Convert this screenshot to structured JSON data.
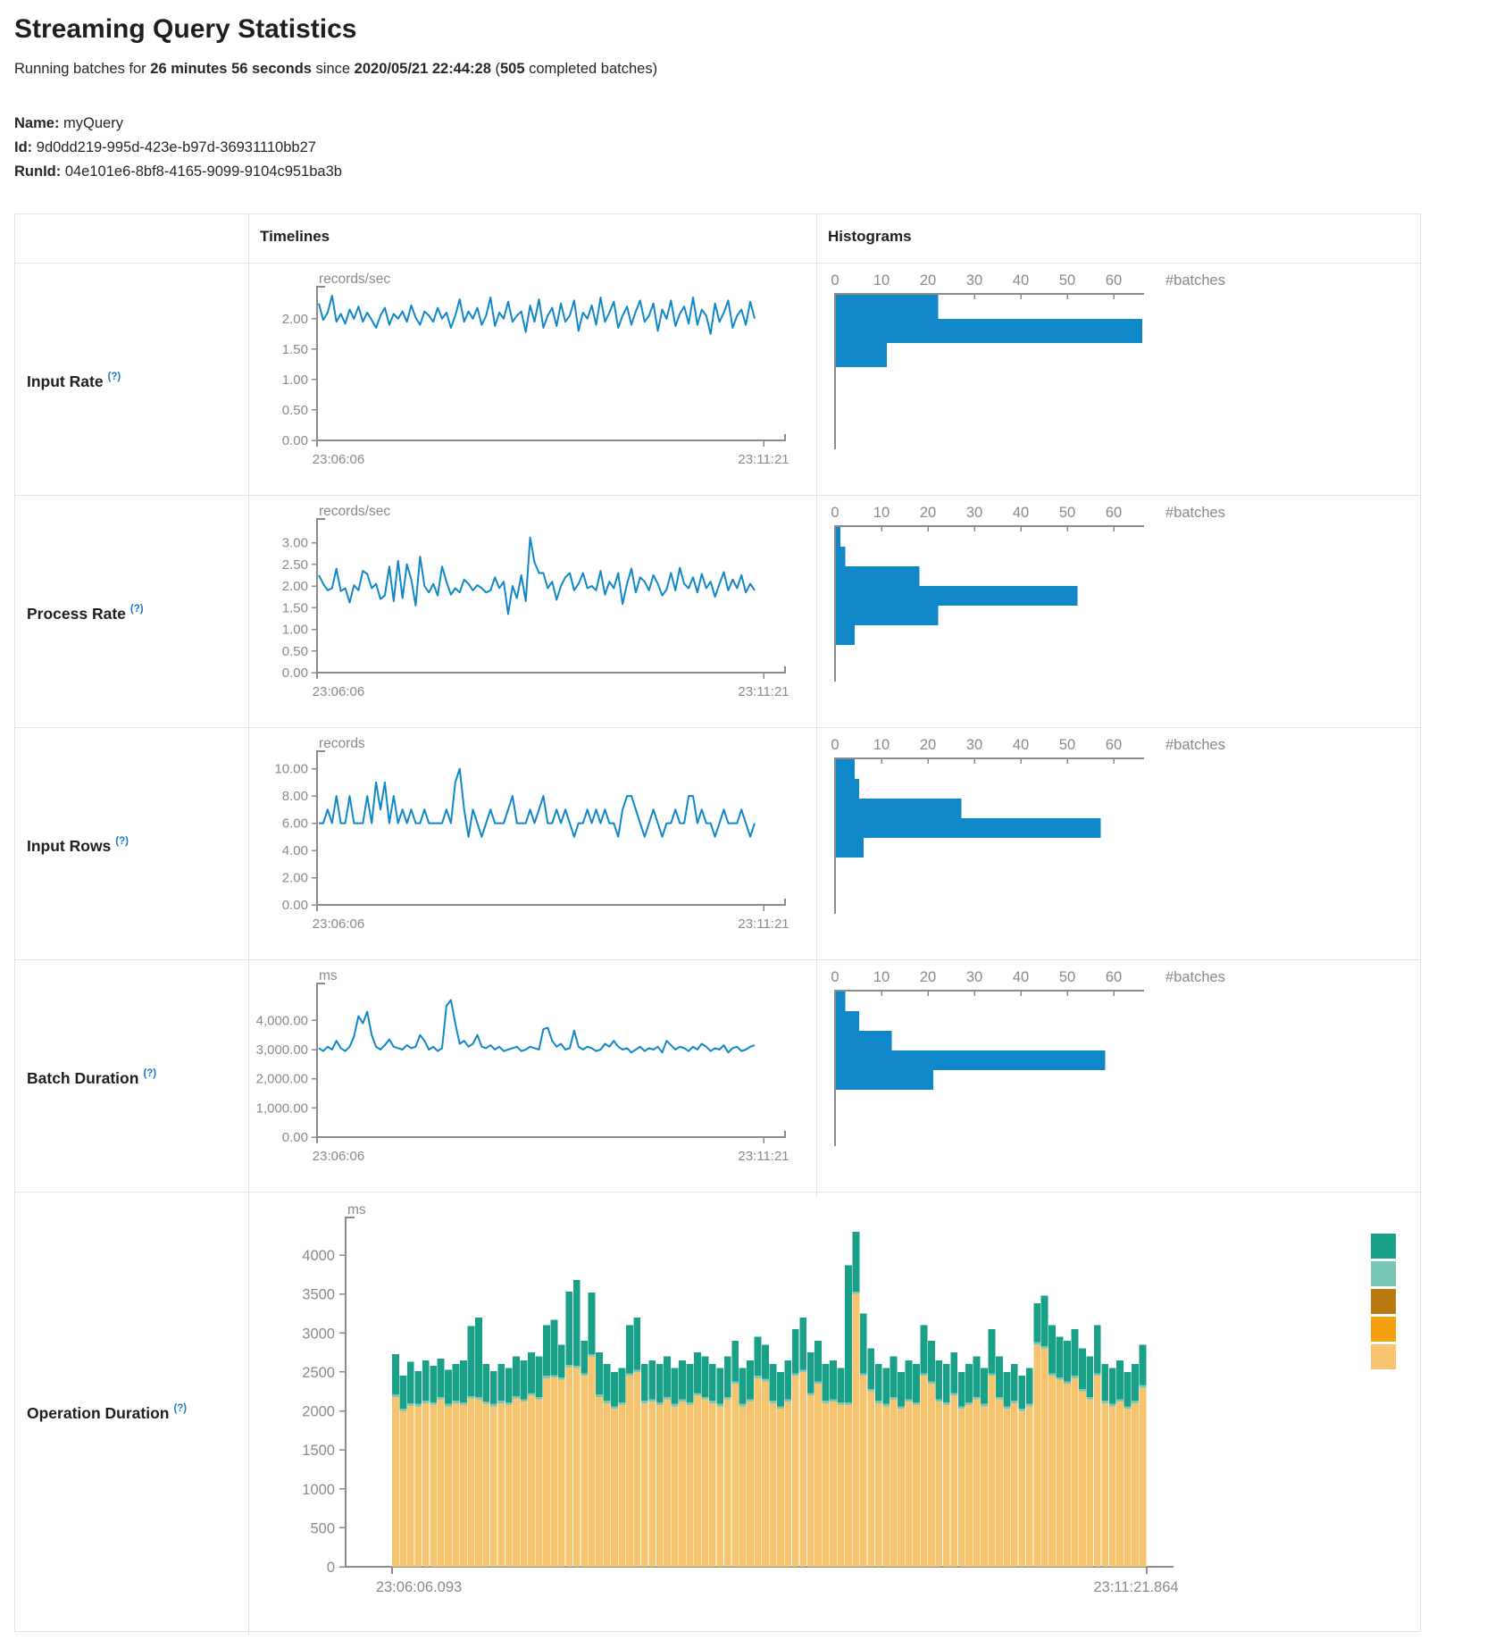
{
  "header": {
    "title": "Streaming Query Statistics",
    "running_prefix": "Running batches for",
    "running_duration": "26 minutes 56 seconds",
    "running_middle": "since",
    "running_start_time": "2020/05/21 22:44:28",
    "running_paren": "(",
    "completed_batches": "505",
    "running_suffix": " completed batches)",
    "name_label": "Name:",
    "name_value": "myQuery",
    "id_label": "Id:",
    "id_value": "9d0dd219-995d-423e-b97d-36931110bb27",
    "runid_label": "RunId:",
    "runid_value": "04e101e6-8bf8-4165-9099-9104c951ba3b"
  },
  "table": {
    "col_timelines": "Timelines",
    "col_histograms": "Histograms",
    "help_marker": "(?)",
    "rows": [
      {
        "label": "Input Rate"
      },
      {
        "label": "Process Rate"
      },
      {
        "label": "Input Rows"
      },
      {
        "label": "Batch Duration"
      },
      {
        "label": "Operation Duration"
      }
    ]
  },
  "colors": {
    "line_blue": "#0f87c9",
    "bar_blue": "#0f87c9",
    "axis_gray": "#8b8b8b",
    "text_gray": "#8a8a8a"
  },
  "chart_data": [
    {
      "id": "input-rate-timeline",
      "type": "line",
      "title": "Input Rate timeline",
      "unit": "records/sec",
      "color": "#0f87c9",
      "yticks": [
        0,
        0.5,
        1,
        1.5,
        2
      ],
      "tick_format": "2dp",
      "ymax": 2.35,
      "x_start_label": "23:06:06",
      "x_end_label": "23:11:21",
      "values": [
        2.25,
        1.98,
        2.1,
        2.38,
        1.95,
        2.08,
        1.92,
        2.15,
        2.0,
        2.2,
        1.95,
        2.1,
        1.98,
        1.85,
        2.05,
        2.18,
        1.9,
        2.08,
        2.0,
        2.12,
        1.95,
        2.22,
        2.02,
        1.9,
        2.12,
        2.05,
        1.95,
        2.18,
        2.0,
        2.1,
        1.85,
        2.05,
        2.32,
        1.95,
        2.12,
        2.0,
        2.18,
        1.9,
        2.05,
        2.35,
        1.88,
        2.1,
        2.0,
        2.28,
        1.95,
        2.05,
        2.12,
        1.78,
        2.22,
        1.95,
        2.32,
        1.85,
        2.05,
        2.18,
        1.88,
        2.25,
        1.95,
        2.05,
        2.3,
        1.8,
        2.1,
        2.0,
        2.22,
        1.9,
        2.35,
        1.95,
        2.1,
        2.28,
        1.85,
        2.05,
        2.2,
        1.9,
        2.12,
        2.3,
        1.95,
        2.05,
        2.25,
        1.8,
        2.15,
        2.0,
        2.3,
        1.88,
        2.08,
        2.2,
        1.92,
        2.35,
        1.9,
        2.15,
        2.05,
        1.75,
        2.25,
        1.95,
        2.1,
        2.3,
        1.85,
        2.05,
        2.15,
        1.9,
        2.28,
        2.0
      ]
    },
    {
      "id": "input-rate-histogram",
      "type": "histogram",
      "title": "Input Rate histogram",
      "color": "#0f87c9",
      "xticks": [
        0,
        10,
        20,
        30,
        40,
        50,
        60
      ],
      "unit_label": "#batches",
      "bin_counts": [
        22,
        66,
        11
      ]
    },
    {
      "id": "process-rate-timeline",
      "type": "line",
      "title": "Process Rate timeline",
      "unit": "records/sec",
      "color": "#0f87c9",
      "yticks": [
        0,
        0.5,
        1,
        1.5,
        2,
        2.5,
        3
      ],
      "tick_format": "2dp",
      "ymax": 3.3,
      "x_start_label": "23:06:06",
      "x_end_label": "23:11:21",
      "values": [
        2.25,
        2.05,
        1.9,
        1.95,
        2.4,
        1.88,
        1.95,
        1.62,
        2.02,
        1.9,
        2.35,
        2.28,
        1.95,
        2.05,
        1.7,
        1.78,
        2.45,
        1.65,
        2.58,
        1.72,
        2.5,
        2.15,
        1.55,
        2.68,
        2.0,
        1.85,
        2.05,
        1.78,
        2.45,
        2.1,
        1.8,
        1.95,
        1.85,
        2.15,
        2.05,
        1.9,
        2.02,
        1.95,
        1.85,
        1.9,
        2.2,
        1.95,
        2.1,
        1.35,
        2.0,
        1.72,
        2.25,
        1.65,
        3.12,
        2.55,
        2.3,
        2.3,
        1.95,
        2.1,
        1.68,
        2.0,
        2.2,
        2.3,
        1.9,
        2.05,
        2.3,
        1.95,
        2.0,
        1.9,
        2.35,
        1.8,
        2.1,
        1.95,
        2.3,
        1.58,
        2.05,
        2.4,
        1.85,
        2.2,
        2.1,
        1.9,
        2.25,
        2.05,
        1.78,
        1.92,
        2.3,
        1.9,
        2.42,
        2.05,
        1.95,
        2.2,
        1.85,
        2.28,
        1.95,
        2.1,
        1.75,
        2.05,
        2.32,
        1.9,
        2.15,
        1.95,
        2.25,
        1.85,
        2.05,
        1.9
      ]
    },
    {
      "id": "process-rate-histogram",
      "type": "histogram",
      "title": "Process Rate histogram",
      "color": "#0f87c9",
      "xticks": [
        0,
        10,
        20,
        30,
        40,
        50,
        60
      ],
      "unit_label": "#batches",
      "bin_counts": [
        1,
        2,
        18,
        52,
        22,
        4
      ]
    },
    {
      "id": "input-rows-timeline",
      "type": "line",
      "title": "Input Rows timeline",
      "unit": "records",
      "color": "#0f87c9",
      "yticks": [
        0,
        2,
        4,
        6,
        8,
        10
      ],
      "tick_format": "2dp",
      "ymax": 10.5,
      "x_start_label": "23:06:06",
      "x_end_label": "23:11:21",
      "values": [
        6,
        6,
        7,
        6,
        8,
        6,
        6,
        8,
        6,
        6,
        6,
        8,
        6,
        9,
        7,
        9,
        6,
        8,
        6,
        7,
        6,
        7,
        6,
        6,
        7,
        6,
        6,
        6,
        6,
        7,
        6,
        9,
        10,
        7,
        5,
        7,
        6,
        5,
        6,
        7,
        6,
        6,
        6,
        7,
        8,
        6,
        6,
        6,
        7,
        6,
        7,
        8,
        6,
        6,
        7,
        6,
        7,
        6,
        5,
        6,
        6,
        7,
        6,
        7,
        6,
        7,
        6,
        6,
        5,
        7,
        8,
        8,
        7,
        6,
        5,
        6,
        7,
        6,
        5,
        6,
        6,
        7,
        6,
        6,
        8,
        8,
        6,
        7,
        6,
        6,
        5,
        6,
        7,
        6,
        6,
        6,
        7,
        6,
        5,
        6
      ]
    },
    {
      "id": "input-rows-histogram",
      "type": "histogram",
      "title": "Input Rows histogram",
      "color": "#0f87c9",
      "xticks": [
        0,
        10,
        20,
        30,
        40,
        50,
        60
      ],
      "unit_label": "#batches",
      "bin_counts": [
        4,
        5,
        27,
        57,
        6
      ]
    },
    {
      "id": "batch-duration-timeline",
      "type": "line",
      "title": "Batch Duration timeline",
      "unit": "ms",
      "color": "#0f87c9",
      "yticks": [
        0,
        1000,
        2000,
        3000,
        4000
      ],
      "tick_format": "2dp",
      "ymax": 4900,
      "x_start_label": "23:06:06",
      "x_end_label": "23:11:21",
      "values": [
        3050,
        2950,
        3100,
        3000,
        3300,
        3050,
        2950,
        3100,
        3450,
        4150,
        3900,
        4300,
        3500,
        3100,
        3000,
        3150,
        3350,
        3100,
        3050,
        3000,
        3150,
        3050,
        3100,
        3500,
        3300,
        3000,
        3100,
        2950,
        3050,
        4500,
        4700,
        3900,
        3200,
        3300,
        3100,
        3200,
        3500,
        3100,
        3050,
        3150,
        3000,
        3100,
        2950,
        3000,
        3050,
        3100,
        2950,
        3000,
        3100,
        3050,
        3000,
        3700,
        3750,
        3300,
        3100,
        3200,
        3000,
        3050,
        3650,
        3100,
        3000,
        3100,
        3050,
        2950,
        3000,
        3200,
        3100,
        3300,
        3100,
        3000,
        3050,
        2900,
        3000,
        3100,
        2950,
        3050,
        3000,
        3100,
        2900,
        3300,
        3150,
        3000,
        3100,
        3050,
        2950,
        3100,
        3000,
        3200,
        3100,
        2950,
        3050,
        3000,
        3150,
        2900,
        3050,
        3100,
        2950,
        3000,
        3100,
        3150
      ]
    },
    {
      "id": "batch-duration-histogram",
      "type": "histogram",
      "title": "Batch Duration histogram",
      "color": "#0f87c9",
      "xticks": [
        0,
        10,
        20,
        30,
        40,
        50,
        60
      ],
      "unit_label": "#batches",
      "bin_counts": [
        2,
        5,
        12,
        58,
        21
      ]
    },
    {
      "id": "operation-duration-stacked",
      "type": "stacked-bar",
      "title": "Operation Duration",
      "unit": "ms",
      "yticks": [
        0,
        500,
        1000,
        1500,
        2000,
        2500,
        3000,
        3500,
        4000
      ],
      "tick_format": "int",
      "ymax": 4302,
      "x_start_label": "23:06:06.093",
      "x_end_label": "23:11:21.864",
      "legend_colors": [
        "#18a089",
        "#79c7b7",
        "#b97a0f",
        "#f4a10e",
        "#f6c46e"
      ],
      "stack_colors": {
        "base": "#f6c46e",
        "sliver": "#79c7b7",
        "top": "#18a089"
      },
      "sliver_value": 30,
      "base_values": [
        2180,
        2000,
        2070,
        2060,
        2100,
        2080,
        2150,
        2060,
        2100,
        2080,
        2160,
        2150,
        2090,
        2060,
        2100,
        2080,
        2160,
        2120,
        2200,
        2150,
        2420,
        2430,
        2400,
        2560,
        2550,
        2450,
        2700,
        2180,
        2100,
        2030,
        2080,
        2450,
        2500,
        2100,
        2120,
        2080,
        2150,
        2060,
        2120,
        2080,
        2200,
        2150,
        2100,
        2060,
        2150,
        2350,
        2060,
        2120,
        2420,
        2380,
        2100,
        2030,
        2120,
        2450,
        2500,
        2200,
        2350,
        2100,
        2120,
        2080,
        2080,
        3500,
        2450,
        2250,
        2100,
        2060,
        2150,
        2030,
        2120,
        2080,
        2450,
        2350,
        2120,
        2080,
        2200,
        2030,
        2080,
        2150,
        2060,
        2450,
        2150,
        2030,
        2100,
        2000,
        2060,
        2850,
        2800,
        2450,
        2400,
        2350,
        2420,
        2250,
        2150,
        2450,
        2100,
        2060,
        2120,
        2030,
        2100,
        2300
      ],
      "top_values": [
        520,
        420,
        530,
        420,
        520,
        470,
        490,
        440,
        470,
        540,
        900,
        1020,
        480,
        420,
        470,
        440,
        510,
        500,
        520,
        520,
        650,
        710,
        420,
        940,
        1100,
        420,
        790,
        540,
        470,
        440,
        440,
        620,
        670,
        470,
        500,
        490,
        520,
        460,
        500,
        490,
        520,
        520,
        470,
        460,
        520,
        520,
        460,
        500,
        500,
        440,
        470,
        440,
        500,
        570,
        670,
        520,
        520,
        470,
        500,
        440,
        1760,
        770,
        770,
        520,
        470,
        460,
        520,
        440,
        500,
        490,
        620,
        520,
        500,
        490,
        520,
        440,
        490,
        520,
        460,
        570,
        520,
        440,
        470,
        420,
        460,
        500,
        650,
        620,
        520,
        520,
        600,
        520,
        520,
        620,
        470,
        460,
        500,
        440,
        470,
        520
      ]
    }
  ]
}
